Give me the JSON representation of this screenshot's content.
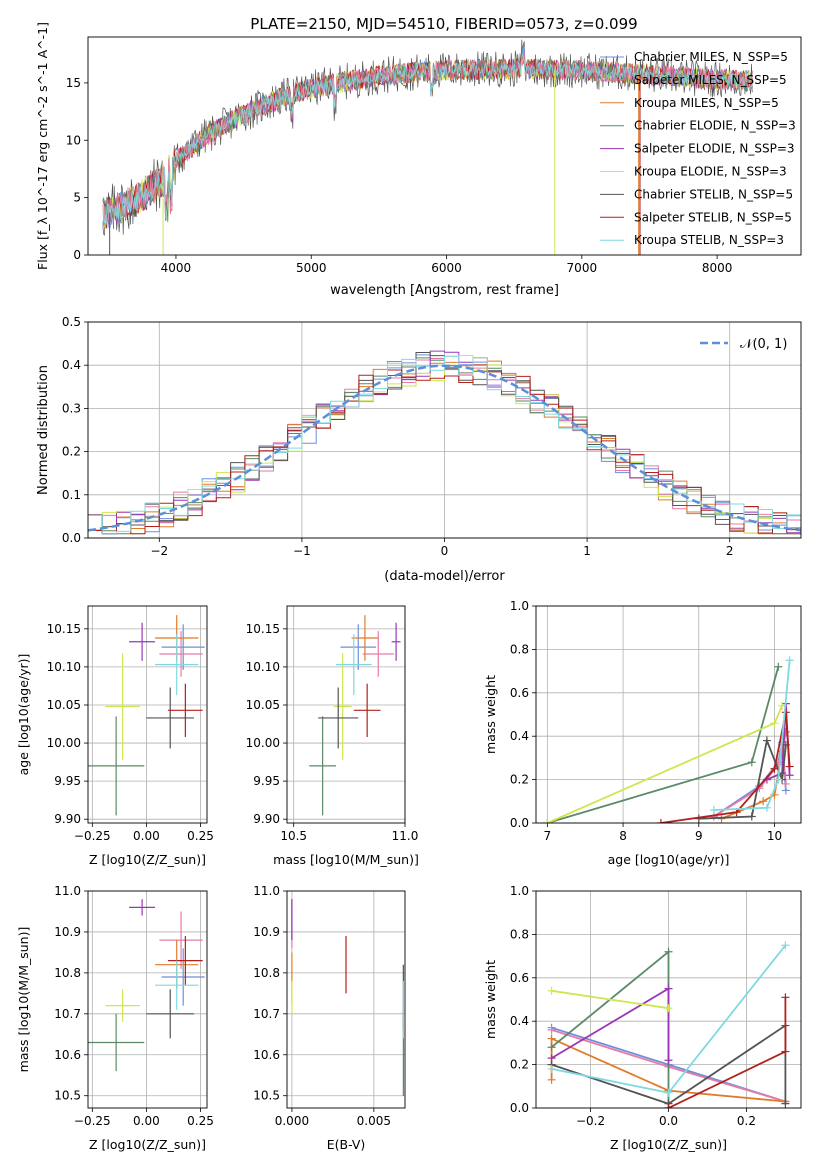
{
  "figure_title": "PLATE=2150, MJD=54510, FIBERID=0573, z=0.099",
  "palette": {
    "Chabrier MILES": "#6f8fdc",
    "Salpeter MILES": "#e77aa8",
    "Kroupa MILES": "#e07b2a",
    "Chabrier ELODIE": "#5a8a66",
    "Salpeter ELODIE": "#9a37b7",
    "Kroupa ELODIE": "#cfe64f",
    "Chabrier STELIB": "#545454",
    "Salpeter STELIB": "#b3201b",
    "Kroupa STELIB": "#7fd9e0"
  },
  "chart_data": [
    {
      "id": "spectrum",
      "type": "line",
      "title": "PLATE=2150, MJD=54510, FIBERID=0573, z=0.099",
      "xlabel": "wavelength [Angstrom, rest frame]",
      "ylabel": "Flux [f_λ 10^-17 erg cm^-2 s^-1 A^-1]",
      "xlim": [
        3350,
        8620
      ],
      "ylim": [
        0,
        19
      ],
      "xticks": [
        4000,
        5000,
        6000,
        7000,
        8000
      ],
      "yticks": [
        0,
        5,
        10,
        15
      ],
      "legend_position": "upper-right",
      "series": [
        {
          "name": "Chabrier MILES, N_SSP=5"
        },
        {
          "name": "Salpeter MILES, N_SSP=5"
        },
        {
          "name": "Kroupa MILES, N_SSP=5"
        },
        {
          "name": "Chabrier ELODIE, N_SSP=3"
        },
        {
          "name": "Salpeter ELODIE, N_SSP=3"
        },
        {
          "name": "Kroupa ELODIE, N_SSP=3"
        },
        {
          "name": "Chabrier STELIB, N_SSP=5"
        },
        {
          "name": "Salpeter STELIB, N_SSP=5"
        },
        {
          "name": "Kroupa STELIB, N_SSP=3"
        }
      ],
      "continuum": {
        "wavelength": [
          3500,
          3700,
          3900,
          4000,
          4200,
          4500,
          4800,
          5000,
          5200,
          5500,
          5800,
          6000,
          6300,
          6600,
          7000,
          7500,
          8000,
          8200
        ],
        "flux": [
          3.6,
          4.8,
          6.5,
          8.2,
          10.2,
          12.3,
          13.8,
          14.5,
          15.0,
          15.6,
          16.0,
          16.1,
          16.2,
          16.2,
          16.1,
          15.7,
          15.3,
          15.2
        ]
      }
    },
    {
      "id": "residuals",
      "type": "line",
      "xlabel": "(data-model)/error",
      "ylabel": "Normed distribution",
      "xlim": [
        -2.5,
        2.5
      ],
      "ylim": [
        0,
        0.5
      ],
      "xticks": [
        -2,
        -1,
        0,
        1,
        2
      ],
      "yticks": [
        0.0,
        0.1,
        0.2,
        0.3,
        0.4,
        0.5
      ],
      "grid": true,
      "legend_position": "upper-right",
      "reference_curve": {
        "name": "N(0,1)",
        "style": "dashed"
      }
    },
    {
      "id": "age_vs_Z",
      "type": "scatter",
      "xlabel": "Z [log10(Z/Z_sun)]",
      "ylabel": "age [log10(age/yr)]",
      "xlim": [
        -0.27,
        0.28
      ],
      "ylim": [
        9.895,
        10.18
      ],
      "xticks": [
        -0.25,
        0.0,
        0.25
      ],
      "yticks": [
        9.9,
        9.95,
        10.0,
        10.05,
        10.1,
        10.15
      ],
      "grid": true,
      "points": [
        {
          "series": "Chabrier MILES",
          "x": 0.17,
          "xerr": 0.1,
          "y": 10.126,
          "yerr": 0.03
        },
        {
          "series": "Salpeter MILES",
          "x": 0.16,
          "xerr": 0.1,
          "y": 10.117,
          "yerr": 0.03
        },
        {
          "series": "Kroupa MILES",
          "x": 0.14,
          "xerr": 0.1,
          "y": 10.138,
          "yerr": 0.03
        },
        {
          "series": "Chabrier ELODIE",
          "x": -0.14,
          "xerr": 0.13,
          "y": 9.97,
          "yerr": 0.065
        },
        {
          "series": "Salpeter ELODIE",
          "x": -0.02,
          "xerr": 0.06,
          "y": 10.133,
          "yerr": 0.025
        },
        {
          "series": "Kroupa ELODIE",
          "x": -0.11,
          "xerr": 0.08,
          "y": 10.048,
          "yerr": 0.07
        },
        {
          "series": "Chabrier STELIB",
          "x": 0.11,
          "xerr": 0.11,
          "y": 10.033,
          "yerr": 0.04
        },
        {
          "series": "Salpeter STELIB",
          "x": 0.18,
          "xerr": 0.08,
          "y": 10.043,
          "yerr": 0.035
        },
        {
          "series": "Kroupa STELIB",
          "x": 0.14,
          "xerr": 0.1,
          "y": 10.103,
          "yerr": 0.04
        }
      ]
    },
    {
      "id": "age_vs_mass",
      "type": "scatter",
      "xlabel": "mass [log10(M/M_sun)]",
      "xlim": [
        10.47,
        11.0
      ],
      "ylim": [
        9.895,
        10.18
      ],
      "xticks": [
        10.5,
        11.0
      ],
      "yticks": [
        9.9,
        9.95,
        10.0,
        10.05,
        10.1,
        10.15
      ],
      "grid": true,
      "points": [
        {
          "series": "Chabrier MILES",
          "x": 10.79,
          "xerr": 0.08,
          "y": 10.126,
          "yerr": 0.03
        },
        {
          "series": "Salpeter MILES",
          "x": 10.88,
          "xerr": 0.07,
          "y": 10.117,
          "yerr": 0.03
        },
        {
          "series": "Kroupa MILES",
          "x": 10.82,
          "xerr": 0.06,
          "y": 10.138,
          "yerr": 0.03
        },
        {
          "series": "Chabrier ELODIE",
          "x": 10.63,
          "xerr": 0.06,
          "y": 9.97,
          "yerr": 0.065
        },
        {
          "series": "Salpeter ELODIE",
          "x": 10.96,
          "xerr": 0.02,
          "y": 10.133,
          "yerr": 0.025
        },
        {
          "series": "Kroupa ELODIE",
          "x": 10.72,
          "xerr": 0.04,
          "y": 10.048,
          "yerr": 0.07
        },
        {
          "series": "Chabrier STELIB",
          "x": 10.7,
          "xerr": 0.09,
          "y": 10.033,
          "yerr": 0.04
        },
        {
          "series": "Salpeter STELIB",
          "x": 10.83,
          "xerr": 0.06,
          "y": 10.043,
          "yerr": 0.035
        },
        {
          "series": "Kroupa STELIB",
          "x": 10.77,
          "xerr": 0.08,
          "y": 10.103,
          "yerr": 0.04
        }
      ]
    },
    {
      "id": "massweight_vs_age",
      "type": "line",
      "xlabel": "age [log10(age/yr)]",
      "ylabel": "mass weight",
      "xlim": [
        6.85,
        10.35
      ],
      "ylim": [
        0,
        1
      ],
      "xticks": [
        7,
        8,
        9,
        10
      ],
      "yticks": [
        0.0,
        0.2,
        0.4,
        0.6,
        0.8,
        1.0
      ],
      "grid": true,
      "series": [
        {
          "series": "Chabrier MILES",
          "x": [
            9.2,
            9.8,
            10.05,
            10.1,
            10.15
          ],
          "y": [
            0.03,
            0.17,
            0.28,
            0.37,
            0.15
          ]
        },
        {
          "series": "Salpeter MILES",
          "x": [
            9.2,
            9.8,
            10.05,
            10.1,
            10.15
          ],
          "y": [
            0.03,
            0.16,
            0.27,
            0.36,
            0.18
          ]
        },
        {
          "series": "Kroupa MILES",
          "x": [
            9.3,
            9.85,
            10.0,
            10.1,
            10.15
          ],
          "y": [
            0.02,
            0.1,
            0.13,
            0.33,
            0.42
          ]
        },
        {
          "series": "Chabrier ELODIE",
          "x": [
            7.0,
            9.7,
            10.05
          ],
          "y": [
            0.0,
            0.28,
            0.72
          ]
        },
        {
          "series": "Salpeter ELODIE",
          "x": [
            9.9,
            10.1,
            10.15,
            10.2
          ],
          "y": [
            0.2,
            0.23,
            0.55,
            0.22
          ]
        },
        {
          "series": "Kroupa ELODIE",
          "x": [
            7.0,
            10.0,
            10.1
          ],
          "y": [
            0.0,
            0.46,
            0.54
          ]
        },
        {
          "series": "Chabrier STELIB",
          "x": [
            9.0,
            9.7,
            9.9,
            10.1,
            10.15
          ],
          "y": [
            0.02,
            0.03,
            0.38,
            0.2,
            0.36
          ]
        },
        {
          "series": "Salpeter STELIB",
          "x": [
            8.5,
            9.5,
            10.0,
            10.15,
            10.2
          ],
          "y": [
            0.0,
            0.05,
            0.25,
            0.51,
            0.26
          ]
        },
        {
          "series": "Kroupa STELIB",
          "x": [
            9.2,
            9.9,
            10.05,
            10.2
          ],
          "y": [
            0.06,
            0.07,
            0.2,
            0.75
          ]
        }
      ]
    },
    {
      "id": "mass_vs_Z",
      "type": "scatter",
      "xlabel": "Z [log10(Z/Z_sun)]",
      "ylabel": "mass [log10(M/M_sun)]",
      "xlim": [
        -0.27,
        0.28
      ],
      "ylim": [
        10.47,
        11.0
      ],
      "xticks": [
        -0.25,
        0.0,
        0.25
      ],
      "yticks": [
        10.5,
        10.6,
        10.7,
        10.8,
        10.9,
        11.0
      ],
      "grid": true,
      "points": [
        {
          "series": "Chabrier MILES",
          "x": 0.17,
          "xerr": 0.1,
          "y": 10.79,
          "yerr": 0.07
        },
        {
          "series": "Salpeter MILES",
          "x": 0.16,
          "xerr": 0.1,
          "y": 10.88,
          "yerr": 0.07
        },
        {
          "series": "Kroupa MILES",
          "x": 0.14,
          "xerr": 0.1,
          "y": 10.82,
          "yerr": 0.06
        },
        {
          "series": "Chabrier ELODIE",
          "x": -0.14,
          "xerr": 0.13,
          "y": 10.63,
          "yerr": 0.07
        },
        {
          "series": "Salpeter ELODIE",
          "x": -0.02,
          "xerr": 0.06,
          "y": 10.96,
          "yerr": 0.02
        },
        {
          "series": "Kroupa ELODIE",
          "x": -0.11,
          "xerr": 0.08,
          "y": 10.72,
          "yerr": 0.04
        },
        {
          "series": "Chabrier STELIB",
          "x": 0.11,
          "xerr": 0.11,
          "y": 10.7,
          "yerr": 0.06
        },
        {
          "series": "Salpeter STELIB",
          "x": 0.18,
          "xerr": 0.08,
          "y": 10.83,
          "yerr": 0.06
        },
        {
          "series": "Kroupa STELIB",
          "x": 0.14,
          "xerr": 0.1,
          "y": 10.77,
          "yerr": 0.06
        }
      ]
    },
    {
      "id": "mass_vs_EBV",
      "type": "scatter",
      "xlabel": "E(B-V)",
      "xlim": [
        -0.0003,
        0.0069
      ],
      "ylim": [
        10.47,
        11.0
      ],
      "xticks": [
        0.0,
        0.005
      ],
      "yticks": [
        10.5,
        10.6,
        10.7,
        10.8,
        10.9,
        11.0
      ],
      "grid": true,
      "points": [
        {
          "series": "Chabrier MILES",
          "x": 0.0,
          "xerr": 0.0,
          "y": 10.93,
          "yerr": 0.05
        },
        {
          "series": "Salpeter MILES",
          "x": 0.0,
          "xerr": 0.0,
          "y": 10.92,
          "yerr": 0.06
        },
        {
          "series": "Kroupa MILES",
          "x": 0.0,
          "xerr": 0.0,
          "y": 10.79,
          "yerr": 0.06
        },
        {
          "series": "Chabrier ELODIE",
          "x": 0.0068,
          "xerr": 0.0,
          "y": 10.6,
          "yerr": 0.1
        },
        {
          "series": "Salpeter ELODIE",
          "x": 0.0,
          "xerr": 0.0,
          "y": 10.93,
          "yerr": 0.05
        },
        {
          "series": "Kroupa ELODIE",
          "x": 0.0,
          "xerr": 0.0,
          "y": 10.74,
          "yerr": 0.04
        },
        {
          "series": "Chabrier STELIB",
          "x": 0.0068,
          "xerr": 0.0,
          "y": 10.74,
          "yerr": 0.08
        },
        {
          "series": "Salpeter STELIB",
          "x": 0.0033,
          "xerr": 0.0,
          "y": 10.82,
          "yerr": 0.07
        },
        {
          "series": "Kroupa STELIB",
          "x": 0.0068,
          "xerr": 0.0,
          "y": 10.71,
          "yerr": 0.07
        }
      ]
    },
    {
      "id": "massweight_vs_Z",
      "type": "line",
      "xlabel": "Z [log10(Z/Z_sun)]",
      "ylabel": "mass weight",
      "xlim": [
        -0.34,
        0.34
      ],
      "ylim": [
        0,
        1
      ],
      "xticks": [
        -0.2,
        0.0,
        0.2
      ],
      "yticks": [
        0.0,
        0.2,
        0.4,
        0.6,
        0.8,
        1.0
      ],
      "grid": true,
      "series": [
        {
          "series": "Chabrier MILES",
          "x": [
            -0.3,
            0.0,
            0.3
          ],
          "y": [
            0.37,
            0.2,
            0.03
          ]
        },
        {
          "series": "Salpeter MILES",
          "x": [
            -0.3,
            0.0,
            0.3
          ],
          "y": [
            0.36,
            0.19,
            0.03
          ]
        },
        {
          "series": "Kroupa MILES",
          "x": [
            -0.3,
            -0.3,
            0.0,
            0.3
          ],
          "y": [
            0.13,
            0.32,
            0.08,
            0.03
          ]
        },
        {
          "series": "Chabrier ELODIE",
          "x": [
            -0.3,
            0.0,
            0.0
          ],
          "y": [
            0.28,
            0.72,
            0.0
          ]
        },
        {
          "series": "Salpeter ELODIE",
          "x": [
            -0.3,
            0.0,
            0.0
          ],
          "y": [
            0.23,
            0.55,
            0.22
          ]
        },
        {
          "series": "Kroupa ELODIE",
          "x": [
            -0.3,
            0.0
          ],
          "y": [
            0.54,
            0.46
          ]
        },
        {
          "series": "Chabrier STELIB",
          "x": [
            -0.3,
            0.0,
            0.3,
            0.3
          ],
          "y": [
            0.2,
            0.02,
            0.38,
            0.02
          ]
        },
        {
          "series": "Salpeter STELIB",
          "x": [
            0.0,
            0.3,
            0.3
          ],
          "y": [
            0.0,
            0.26,
            0.51
          ]
        },
        {
          "series": "Kroupa STELIB",
          "x": [
            -0.3,
            0.0,
            0.3
          ],
          "y": [
            0.18,
            0.07,
            0.75
          ]
        }
      ]
    }
  ]
}
